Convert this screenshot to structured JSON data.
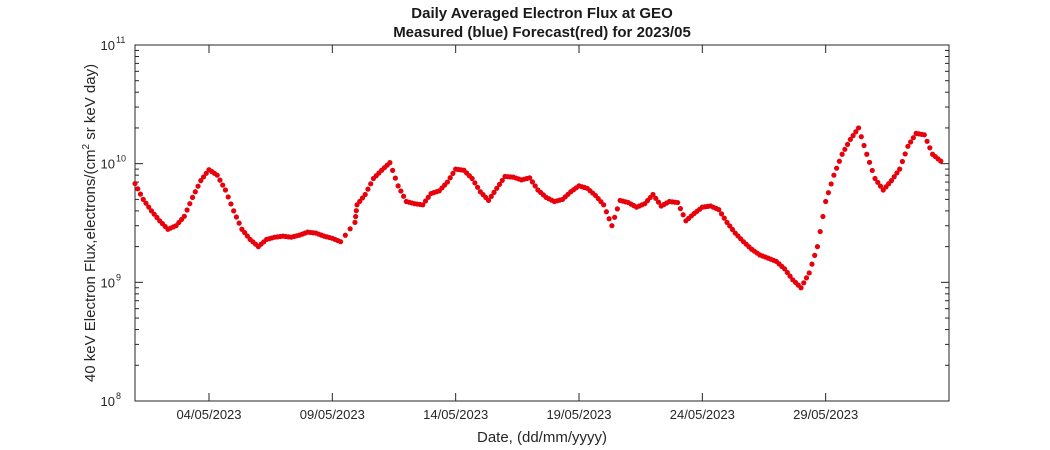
{
  "chart_data": {
    "type": "scatter",
    "title": "Daily Averaged Electron Flux at GEO",
    "subtitle": "Measured (blue) Forecast(red) for 2023/05",
    "xlabel": "Date, (dd/mm/yyyy)",
    "ylabel_main": "40 keV Electron Flux,electrons/(cm",
    "ylabel_sup": "2",
    "ylabel_tail": " sr keV day)",
    "y_scale": "log",
    "ylim": [
      100000000.0,
      100000000000.0
    ],
    "xlim": [
      "2023-05-01",
      "2023-06-03"
    ],
    "grid": false,
    "x_ticks": [
      {
        "date": "2023-05-04",
        "label": "04/05/2023"
      },
      {
        "date": "2023-05-09",
        "label": "09/05/2023"
      },
      {
        "date": "2023-05-14",
        "label": "14/05/2023"
      },
      {
        "date": "2023-05-19",
        "label": "19/05/2023"
      },
      {
        "date": "2023-05-24",
        "label": "24/05/2023"
      },
      {
        "date": "2023-05-29",
        "label": "29/05/2023"
      }
    ],
    "y_ticks": [
      {
        "value": 100000000.0,
        "base": "10",
        "exp": "8"
      },
      {
        "value": 1000000000.0,
        "base": "10",
        "exp": "9"
      },
      {
        "value": 10000000000.0,
        "base": "10",
        "exp": "10"
      },
      {
        "value": 100000000000.0,
        "base": "10",
        "exp": "11"
      }
    ],
    "series": [
      {
        "name": "Forecast",
        "color": "#e8000b",
        "marker": "dot",
        "points": [
          [
            "2023-05-01",
            6800000000.0
          ],
          [
            "2023-05-01T08:00",
            5000000000.0
          ],
          [
            "2023-05-01T16:00",
            4000000000.0
          ],
          [
            "2023-05-02",
            3300000000.0
          ],
          [
            "2023-05-02T08:00",
            2800000000.0
          ],
          [
            "2023-05-02T16:00",
            3000000000.0
          ],
          [
            "2023-05-03",
            3600000000.0
          ],
          [
            "2023-05-03T08:00",
            5200000000.0
          ],
          [
            "2023-05-03T16:00",
            7200000000.0
          ],
          [
            "2023-05-04",
            8900000000.0
          ],
          [
            "2023-05-04T08:00",
            8000000000.0
          ],
          [
            "2023-05-04T16:00",
            6000000000.0
          ],
          [
            "2023-05-05",
            4000000000.0
          ],
          [
            "2023-05-05T08:00",
            2800000000.0
          ],
          [
            "2023-05-05T16:00",
            2300000000.0
          ],
          [
            "2023-05-06",
            2000000000.0
          ],
          [
            "2023-05-06T08:00",
            2300000000.0
          ],
          [
            "2023-05-06T16:00",
            2400000000.0
          ],
          [
            "2023-05-07",
            2450000000.0
          ],
          [
            "2023-05-07T08:00",
            2400000000.0
          ],
          [
            "2023-05-07T16:00",
            2500000000.0
          ],
          [
            "2023-05-08",
            2650000000.0
          ],
          [
            "2023-05-08T08:00",
            2600000000.0
          ],
          [
            "2023-05-08T16:00",
            2450000000.0
          ],
          [
            "2023-05-09",
            2350000000.0
          ],
          [
            "2023-05-09T08:00",
            2200000000.0
          ],
          [
            "2023-05-09T22:00",
            3200000000.0
          ],
          [
            "2023-05-10",
            4500000000.0
          ],
          [
            "2023-05-10T08:00",
            5500000000.0
          ],
          [
            "2023-05-10T16:00",
            7500000000.0
          ],
          [
            "2023-05-11",
            8800000000.0
          ],
          [
            "2023-05-11T08:00",
            10200000000.0
          ],
          [
            "2023-05-11T16:00",
            6500000000.0
          ],
          [
            "2023-05-12",
            4800000000.0
          ],
          [
            "2023-05-12T08:00",
            4600000000.0
          ],
          [
            "2023-05-12T16:00",
            4500000000.0
          ],
          [
            "2023-05-13",
            5600000000.0
          ],
          [
            "2023-05-13T08:00",
            5900000000.0
          ],
          [
            "2023-05-13T16:00",
            7000000000.0
          ],
          [
            "2023-05-14",
            9000000000.0
          ],
          [
            "2023-05-14T08:00",
            8800000000.0
          ],
          [
            "2023-05-14T16:00",
            7500000000.0
          ],
          [
            "2023-05-15",
            5800000000.0
          ],
          [
            "2023-05-15T08:00",
            4900000000.0
          ],
          [
            "2023-05-15T16:00",
            6200000000.0
          ],
          [
            "2023-05-16",
            7800000000.0
          ],
          [
            "2023-05-16T08:00",
            7700000000.0
          ],
          [
            "2023-05-16T16:00",
            7300000000.0
          ],
          [
            "2023-05-17",
            7600000000.0
          ],
          [
            "2023-05-17T08:00",
            6000000000.0
          ],
          [
            "2023-05-17T16:00",
            5200000000.0
          ],
          [
            "2023-05-18",
            4800000000.0
          ],
          [
            "2023-05-18T08:00",
            5000000000.0
          ],
          [
            "2023-05-18T16:00",
            5800000000.0
          ],
          [
            "2023-05-19",
            6500000000.0
          ],
          [
            "2023-05-19T08:00",
            6200000000.0
          ],
          [
            "2023-05-19T16:00",
            5400000000.0
          ],
          [
            "2023-05-20",
            4500000000.0
          ],
          [
            "2023-05-20T08:00",
            3000000000.0
          ],
          [
            "2023-05-20T16:00",
            4900000000.0
          ],
          [
            "2023-05-21",
            4700000000.0
          ],
          [
            "2023-05-21T08:00",
            4300000000.0
          ],
          [
            "2023-05-21T16:00",
            4600000000.0
          ],
          [
            "2023-05-22",
            5500000000.0
          ],
          [
            "2023-05-22T08:00",
            4400000000.0
          ],
          [
            "2023-05-22T16:00",
            4800000000.0
          ],
          [
            "2023-05-23",
            4700000000.0
          ],
          [
            "2023-05-23T08:00",
            3300000000.0
          ],
          [
            "2023-05-23T16:00",
            3800000000.0
          ],
          [
            "2023-05-24",
            4300000000.0
          ],
          [
            "2023-05-24T08:00",
            4400000000.0
          ],
          [
            "2023-05-24T16:00",
            4100000000.0
          ],
          [
            "2023-05-25",
            3200000000.0
          ],
          [
            "2023-05-25T08:00",
            2600000000.0
          ],
          [
            "2023-05-25T16:00",
            2200000000.0
          ],
          [
            "2023-05-26",
            1900000000.0
          ],
          [
            "2023-05-26T08:00",
            1700000000.0
          ],
          [
            "2023-05-26T16:00",
            1600000000.0
          ],
          [
            "2023-05-27",
            1500000000.0
          ],
          [
            "2023-05-27T08:00",
            1300000000.0
          ],
          [
            "2023-05-27T16:00",
            1050000000.0
          ],
          [
            "2023-05-28",
            900000000.0
          ],
          [
            "2023-05-28T08:00",
            1200000000.0
          ],
          [
            "2023-05-28T16:00",
            2000000000.0
          ],
          [
            "2023-05-29",
            4800000000.0
          ],
          [
            "2023-05-29T08:00",
            8000000000.0
          ],
          [
            "2023-05-29T16:00",
            12000000000.0
          ],
          [
            "2023-05-30",
            16000000000.0
          ],
          [
            "2023-05-30T08:00",
            20000000000.0
          ],
          [
            "2023-05-30T16:00",
            12000000000.0
          ],
          [
            "2023-05-31",
            7500000000.0
          ],
          [
            "2023-05-31T08:00",
            6000000000.0
          ],
          [
            "2023-05-31T16:00",
            7200000000.0
          ],
          [
            "2023-06-01",
            9000000000.0
          ],
          [
            "2023-06-01T08:00",
            14000000000.0
          ],
          [
            "2023-06-01T16:00",
            18000000000.0
          ],
          [
            "2023-06-02",
            17500000000.0
          ],
          [
            "2023-06-02T08:00",
            12000000000.0
          ],
          [
            "2023-06-02T16:00",
            10500000000.0
          ]
        ]
      }
    ]
  }
}
